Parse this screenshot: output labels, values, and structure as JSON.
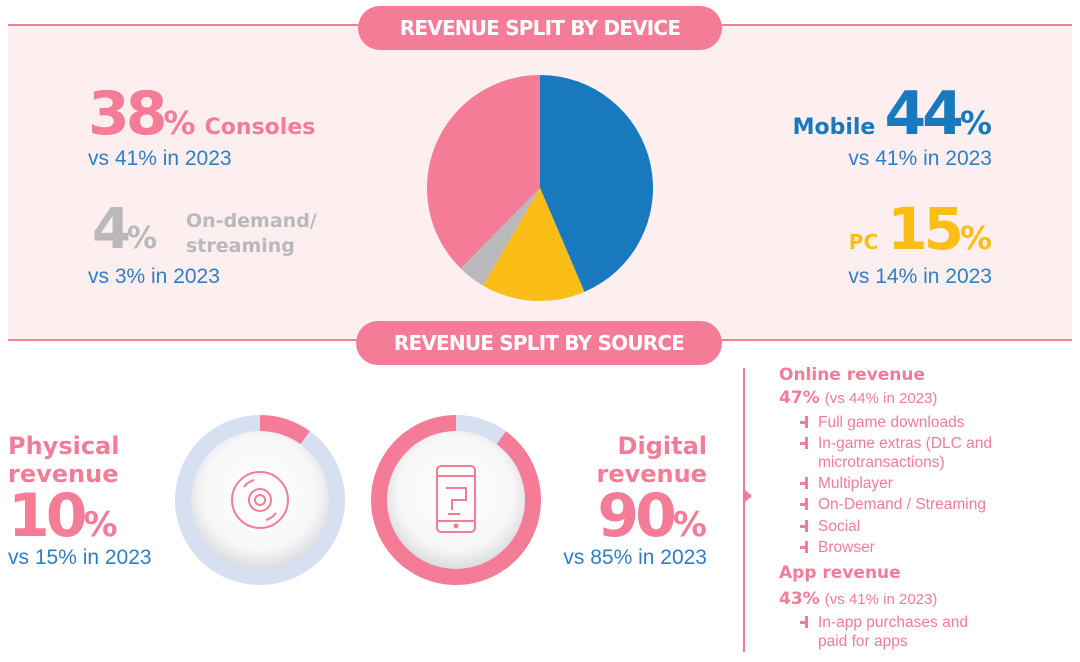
{
  "device_section": {
    "heading": "REVENUE SPLIT BY DEVICE",
    "consoles": {
      "value": "38",
      "unit": "%",
      "label": "Consoles",
      "comparison": "vs 41% in 2023"
    },
    "ondemand": {
      "value": "4",
      "unit": "%",
      "label_line1": "On-demand/",
      "label_line2": "streaming",
      "comparison": "vs 3% in 2023"
    },
    "mobile": {
      "value": "44",
      "unit": "%",
      "label": "Mobile",
      "comparison": "vs 41% in 2023"
    },
    "pc": {
      "value": "15",
      "unit": "%",
      "label": "PC",
      "comparison": "vs 14% in 2023"
    }
  },
  "source_section": {
    "heading": "REVENUE SPLIT BY SOURCE",
    "physical": {
      "label_line1": "Physical",
      "label_line2": "revenue",
      "value": "10",
      "unit": "%",
      "comparison": "vs 15% in 2023"
    },
    "digital": {
      "label_line1": "Digital",
      "label_line2": "revenue",
      "value": "90",
      "unit": "%",
      "comparison": "vs 85% in 2023"
    },
    "online": {
      "title": "Online revenue",
      "value": "47%",
      "comparison": "(vs 44% in 2023)",
      "items": [
        "Full game downloads",
        "In-game extras (DLC and",
        "microtransactions)",
        "Multiplayer",
        "On-Demand / Streaming",
        "Social",
        "Browser"
      ]
    },
    "app": {
      "title": "App revenue",
      "value": "43%",
      "comparison": "(vs 41% in 2023)",
      "items": [
        "In-app purchases and",
        "paid for apps"
      ]
    }
  },
  "colors": {
    "pink": "#f47c97",
    "blue": "#1879bf",
    "yellow": "#fbbe16",
    "grey": "#b9b9bb",
    "light_blue": "#d6e0f1",
    "panel": "#fdeef0"
  },
  "icons": [
    "disc-icon",
    "smartphone-icon"
  ],
  "chart_data": [
    {
      "type": "pie",
      "title": "REVENUE SPLIT BY DEVICE",
      "categories": [
        "Mobile",
        "PC",
        "On-demand/streaming",
        "Consoles"
      ],
      "values": [
        44,
        15,
        4,
        38
      ],
      "colors": [
        "#1879bf",
        "#fbbe16",
        "#b9b9bb",
        "#f47c97"
      ]
    },
    {
      "type": "pie",
      "title": "REVENUE SPLIT BY SOURCE",
      "categories": [
        "Physical revenue",
        "Digital revenue"
      ],
      "values": [
        10,
        90
      ],
      "comparison_2023": [
        15,
        85
      ]
    }
  ]
}
